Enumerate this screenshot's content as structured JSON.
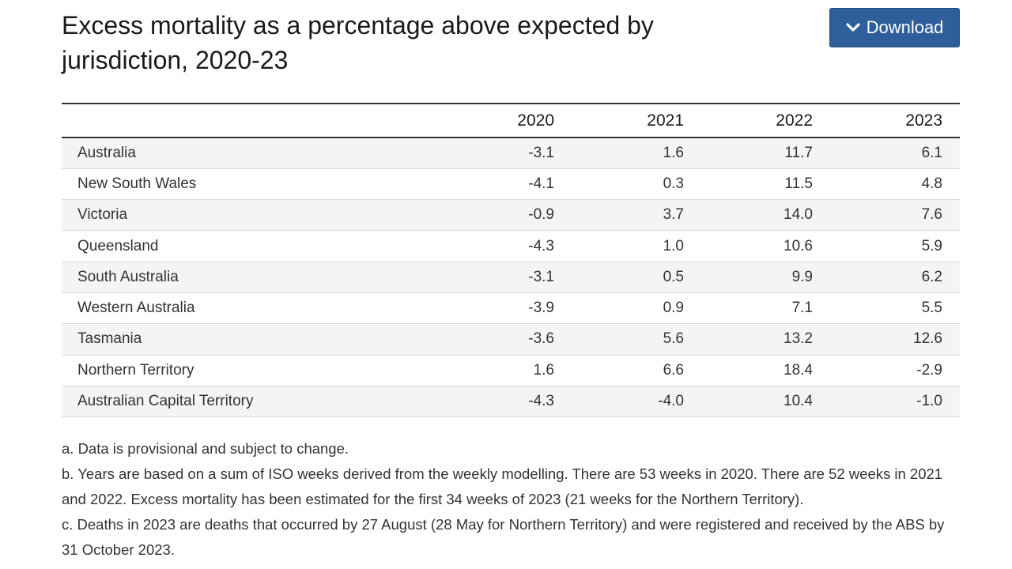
{
  "title": "Excess mortality as a percentage above expected by jurisdiction, 2020-23",
  "download": {
    "label": "Download",
    "icon": "chevron-down-icon",
    "color": "#2e5f9a"
  },
  "table": {
    "columns": [
      "",
      "2020",
      "2021",
      "2022",
      "2023"
    ],
    "rows": [
      [
        "Australia",
        "-3.1",
        "1.6",
        "11.7",
        "6.1"
      ],
      [
        "New South Wales",
        "-4.1",
        "0.3",
        "11.5",
        "4.8"
      ],
      [
        "Victoria",
        "-0.9",
        "3.7",
        "14.0",
        "7.6"
      ],
      [
        "Queensland",
        "-4.3",
        "1.0",
        "10.6",
        "5.9"
      ],
      [
        "South Australia",
        "-3.1",
        "0.5",
        "9.9",
        "6.2"
      ],
      [
        "Western Australia",
        "-3.9",
        "0.9",
        "7.1",
        "5.5"
      ],
      [
        "Tasmania",
        "-3.6",
        "5.6",
        "13.2",
        "12.6"
      ],
      [
        "Northern Territory",
        "1.6",
        "6.6",
        "18.4",
        "-2.9"
      ],
      [
        "Australian Capital Territory",
        "-4.3",
        "-4.0",
        "10.4",
        "-1.0"
      ]
    ]
  },
  "notes": [
    "a. Data is provisional and subject to change.",
    "b. Years are based on a sum of ISO weeks derived from the weekly modelling. There are 53 weeks in 2020. There are 52 weeks in 2021 and 2022. Excess mortality has been estimated for the first 34 weeks of 2023 (21 weeks for the Northern Territory).",
    "c. Deaths in 2023 are deaths that occurred by 27 August (28 May for Northern Territory) and were registered and received by the ABS by 31 October 2023."
  ]
}
